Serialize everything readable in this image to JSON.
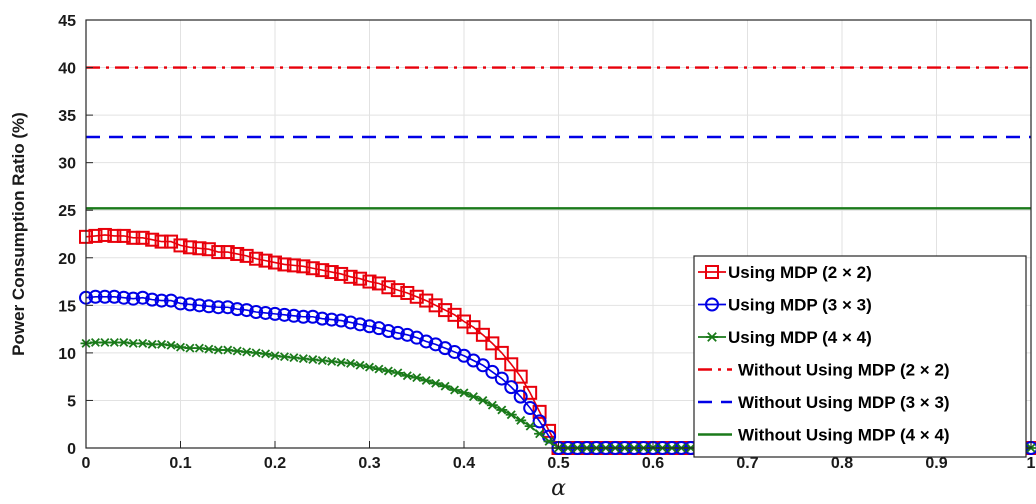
{
  "chart_data": {
    "type": "line",
    "xlabel": "α",
    "ylabel": "Power Consumption Ratio (%)",
    "xlim": [
      0,
      1
    ],
    "ylim": [
      0,
      45
    ],
    "xticks": [
      "0",
      "0.1",
      "0.2",
      "0.3",
      "0.4",
      "0.5",
      "0.6",
      "0.7",
      "0.8",
      "0.9",
      "1"
    ],
    "yticks": [
      "0",
      "5",
      "10",
      "15",
      "20",
      "25",
      "30",
      "35",
      "40",
      "45"
    ],
    "grid": true,
    "legend_position": "bottom-right",
    "series": [
      {
        "name": "Using MDP (2 × 2)",
        "color": "#e8000b",
        "marker": "square",
        "line_style": "solid",
        "x": [
          0,
          0.01,
          0.02,
          0.03,
          0.04,
          0.05,
          0.06,
          0.07,
          0.08,
          0.09,
          0.1,
          0.11,
          0.12,
          0.13,
          0.14,
          0.15,
          0.16,
          0.17,
          0.18,
          0.19,
          0.2,
          0.21,
          0.22,
          0.23,
          0.24,
          0.25,
          0.26,
          0.27,
          0.28,
          0.29,
          0.3,
          0.31,
          0.32,
          0.33,
          0.34,
          0.35,
          0.36,
          0.37,
          0.38,
          0.39,
          0.4,
          0.41,
          0.42,
          0.43,
          0.44,
          0.45,
          0.46,
          0.47,
          0.48,
          0.49,
          0.5,
          0.51,
          0.52,
          0.53,
          0.54,
          0.55,
          0.56,
          0.57,
          0.58,
          0.59,
          0.6,
          0.61,
          0.62,
          0.63,
          0.64,
          0.65,
          0.66,
          0.67,
          0.68,
          0.69,
          0.7,
          0.71,
          0.72,
          0.73,
          0.74,
          0.75,
          0.76,
          0.77,
          0.78,
          0.79,
          0.8,
          0.81,
          0.82,
          0.83,
          0.84,
          0.85,
          0.86,
          0.87,
          0.88,
          0.89,
          0.9,
          0.91,
          0.92,
          0.93,
          0.94,
          0.95,
          0.96,
          0.97,
          0.98,
          0.99,
          1
        ],
        "y": [
          22.2,
          22.3,
          22.4,
          22.3,
          22.3,
          22.1,
          22.1,
          21.9,
          21.7,
          21.7,
          21.3,
          21.1,
          21.0,
          20.9,
          20.6,
          20.6,
          20.4,
          20.2,
          19.9,
          19.7,
          19.5,
          19.3,
          19.2,
          19.1,
          18.9,
          18.7,
          18.5,
          18.3,
          18.0,
          17.8,
          17.5,
          17.3,
          16.9,
          16.6,
          16.3,
          15.9,
          15.5,
          15.0,
          14.5,
          14.0,
          13.3,
          12.7,
          11.9,
          11.0,
          10.0,
          8.8,
          7.5,
          5.8,
          3.8,
          1.8,
          0,
          0,
          0,
          0,
          0,
          0,
          0,
          0,
          0,
          0,
          0,
          0,
          0,
          0,
          0,
          0,
          0,
          0,
          0,
          0,
          0,
          0,
          0,
          0,
          0,
          0,
          0,
          0,
          0,
          0,
          0,
          0,
          0,
          0,
          0,
          0,
          0,
          0,
          0,
          0,
          0,
          0,
          0,
          0,
          0,
          0,
          0,
          0,
          0,
          0,
          0
        ]
      },
      {
        "name": "Using MDP (3 × 3)",
        "color": "#0000e6",
        "marker": "circle",
        "line_style": "solid",
        "x": [
          0,
          0.01,
          0.02,
          0.03,
          0.04,
          0.05,
          0.06,
          0.07,
          0.08,
          0.09,
          0.1,
          0.11,
          0.12,
          0.13,
          0.14,
          0.15,
          0.16,
          0.17,
          0.18,
          0.19,
          0.2,
          0.21,
          0.22,
          0.23,
          0.24,
          0.25,
          0.26,
          0.27,
          0.28,
          0.29,
          0.3,
          0.31,
          0.32,
          0.33,
          0.34,
          0.35,
          0.36,
          0.37,
          0.38,
          0.39,
          0.4,
          0.41,
          0.42,
          0.43,
          0.44,
          0.45,
          0.46,
          0.47,
          0.48,
          0.49,
          0.5,
          0.51,
          0.52,
          0.53,
          0.54,
          0.55,
          0.56,
          0.57,
          0.58,
          0.59,
          0.6,
          0.61,
          0.62,
          0.63,
          0.64,
          0.65,
          0.66,
          0.67,
          0.68,
          0.69,
          0.7,
          0.71,
          0.72,
          0.73,
          0.74,
          0.75,
          0.76,
          0.77,
          0.78,
          0.79,
          0.8,
          0.81,
          0.82,
          0.83,
          0.84,
          0.85,
          0.86,
          0.87,
          0.88,
          0.89,
          0.9,
          0.91,
          0.92,
          0.93,
          0.94,
          0.95,
          0.96,
          0.97,
          0.98,
          0.99,
          1
        ],
        "y": [
          15.8,
          15.9,
          15.9,
          15.9,
          15.8,
          15.7,
          15.8,
          15.6,
          15.5,
          15.5,
          15.2,
          15.1,
          15.0,
          14.9,
          14.8,
          14.8,
          14.6,
          14.5,
          14.3,
          14.2,
          14.1,
          14.0,
          13.9,
          13.8,
          13.8,
          13.6,
          13.5,
          13.4,
          13.2,
          13.0,
          12.8,
          12.6,
          12.3,
          12.1,
          11.9,
          11.6,
          11.2,
          10.9,
          10.5,
          10.1,
          9.7,
          9.2,
          8.7,
          8.0,
          7.3,
          6.4,
          5.4,
          4.2,
          2.8,
          1.2,
          0,
          0,
          0,
          0,
          0,
          0,
          0,
          0,
          0,
          0,
          0,
          0,
          0,
          0,
          0,
          0,
          0,
          0,
          0,
          0,
          0,
          0,
          0,
          0,
          0,
          0,
          0,
          0,
          0,
          0,
          0,
          0,
          0,
          0,
          0,
          0,
          0,
          0,
          0,
          0,
          0,
          0,
          0,
          0,
          0,
          0,
          0,
          0,
          0,
          0,
          0
        ]
      },
      {
        "name": "Using MDP (4 × 4)",
        "color": "#1a7a1a",
        "marker": "star",
        "line_style": "solid",
        "x": [
          0,
          0.01,
          0.02,
          0.03,
          0.04,
          0.05,
          0.06,
          0.07,
          0.08,
          0.09,
          0.1,
          0.11,
          0.12,
          0.13,
          0.14,
          0.15,
          0.16,
          0.17,
          0.18,
          0.19,
          0.2,
          0.21,
          0.22,
          0.23,
          0.24,
          0.25,
          0.26,
          0.27,
          0.28,
          0.29,
          0.3,
          0.31,
          0.32,
          0.33,
          0.34,
          0.35,
          0.36,
          0.37,
          0.38,
          0.39,
          0.4,
          0.41,
          0.42,
          0.43,
          0.44,
          0.45,
          0.46,
          0.47,
          0.48,
          0.49,
          0.5,
          0.51,
          0.52,
          0.53,
          0.54,
          0.55,
          0.56,
          0.57,
          0.58,
          0.59,
          0.6,
          0.61,
          0.62,
          0.63,
          0.64,
          0.65,
          0.66,
          0.67,
          0.68,
          0.69,
          0.7,
          0.71,
          0.72,
          0.73,
          0.74,
          0.75,
          0.76,
          0.77,
          0.78,
          0.79,
          0.8,
          0.81,
          0.82,
          0.83,
          0.84,
          0.85,
          0.86,
          0.87,
          0.88,
          0.89,
          0.9,
          0.91,
          0.92,
          0.93,
          0.94,
          0.95,
          0.96,
          0.97,
          0.98,
          0.99,
          1
        ],
        "y": [
          11.0,
          11.1,
          11.1,
          11.1,
          11.1,
          11.0,
          11.0,
          10.9,
          10.9,
          10.8,
          10.6,
          10.5,
          10.5,
          10.4,
          10.3,
          10.3,
          10.2,
          10.1,
          10.0,
          9.9,
          9.7,
          9.6,
          9.5,
          9.4,
          9.3,
          9.2,
          9.1,
          9.0,
          8.9,
          8.7,
          8.5,
          8.3,
          8.1,
          7.9,
          7.6,
          7.4,
          7.1,
          6.8,
          6.5,
          6.1,
          5.8,
          5.4,
          5.0,
          4.5,
          4.0,
          3.5,
          2.9,
          2.3,
          1.5,
          0.7,
          0,
          0,
          0,
          0,
          0,
          0,
          0,
          0,
          0,
          0,
          0,
          0,
          0,
          0,
          0,
          0,
          0,
          0,
          0,
          0,
          0,
          0,
          0,
          0,
          0,
          0,
          0,
          0,
          0,
          0,
          0,
          0,
          0,
          0,
          0,
          0,
          0,
          0,
          0,
          0,
          0,
          0,
          0,
          0,
          0,
          0,
          0,
          0,
          0,
          0,
          0
        ]
      },
      {
        "name": "Without Using MDP (2 × 2)",
        "color": "#e8000b",
        "marker": "none",
        "line_style": "dashdot",
        "x": [
          0,
          1
        ],
        "y": [
          40,
          40
        ]
      },
      {
        "name": "Without Using MDP (3 × 3)",
        "color": "#0000e6",
        "marker": "none",
        "line_style": "dashed",
        "x": [
          0,
          1
        ],
        "y": [
          32.7,
          32.7
        ]
      },
      {
        "name": "Without Using MDP (4 × 4)",
        "color": "#1a7a1a",
        "marker": "none",
        "line_style": "solid",
        "x": [
          0,
          1
        ],
        "y": [
          25.2,
          25.2
        ]
      }
    ]
  }
}
